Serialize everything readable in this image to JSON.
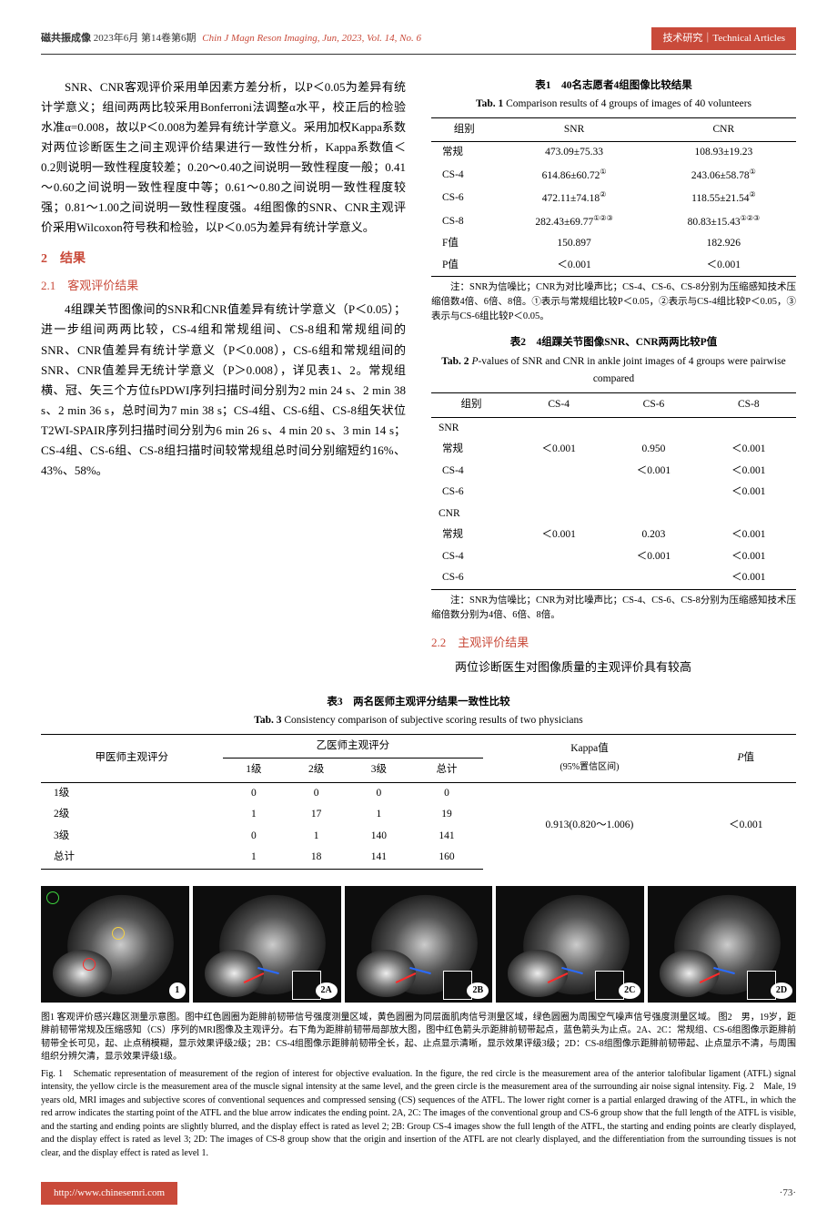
{
  "colors": {
    "accent": "#c94a3a",
    "text": "#000000",
    "background": "#ffffff",
    "mri_bg": "#0d0d0d",
    "circle_red": "#ff2a2a",
    "circle_yellow": "#f5d142",
    "circle_green": "#3fd63f",
    "arrow_red": "#ff2a2a",
    "arrow_blue": "#2a6bff"
  },
  "header": {
    "journal_cn": "磁共振成像",
    "issue_info": "2023年6月 第14卷第6期",
    "journal_en": "Chin J Magn Reson Imaging, Jun, 2023, Vol. 14, No. 6",
    "section_label": "技术研究｜Technical Articles"
  },
  "body": {
    "para1": "SNR、CNR客观评价采用单因素方差分析，以P＜0.05为差异有统计学意义；组间两两比较采用Bonferroni法调整α水平，校正后的检验水准α=0.008，故以P＜0.008为差异有统计学意义。采用加权Kappa系数对两位诊断医生之间主观评价结果进行一致性分析，Kappa系数值＜0.2则说明一致性程度较差；0.20～0.40之间说明一致性程度一般；0.41～0.60之间说明一致性程度中等；0.61～0.80之间说明一致性程度较强；0.81～1.00之间说明一致性程度强。4组图像的SNR、CNR主观评价采用Wilcoxon符号秩和检验，以P＜0.05为差异有统计学意义。",
    "section2_title": "2　结果",
    "section2_1_title": "2.1　客观评价结果",
    "para2": "4组踝关节图像间的SNR和CNR值差异有统计学意义（P＜0.05）；进一步组间两两比较，CS-4组和常规组间、CS-8组和常规组间的SNR、CNR值差异有统计学意义（P＜0.008），CS-6组和常规组间的SNR、CNR值差异无统计学意义（P＞0.008），详见表1、2。常规组横、冠、矢三个方位fsPDWI序列扫描时间分别为2 min 24 s、2 min 38 s、2 min 36 s，总时间为7 min 38 s；CS-4组、CS-6组、CS-8组矢状位T2WI-SPAIR序列扫描时间分别为6 min 26 s、4 min 20 s、3 min 14 s；CS-4组、CS-6组、CS-8组扫描时间较常规组总时间分别缩短约16%、43%、58%。",
    "section2_2_title": "2.2　主观评价结果",
    "para3": "两位诊断医生对图像质量的主观评价具有较高"
  },
  "table1": {
    "title_cn": "表1　40名志愿者4组图像比较结果",
    "title_en_prefix": "Tab. 1",
    "title_en": "Comparison results of 4 groups of images of 40 volunteers",
    "columns": [
      "组别",
      "SNR",
      "CNR"
    ],
    "rows": [
      {
        "cells": [
          "常规",
          "473.09±75.33",
          "108.93±19.23"
        ],
        "sup": [
          "",
          "",
          ""
        ]
      },
      {
        "cells": [
          "CS-4",
          "614.86±60.72",
          "243.06±58.78"
        ],
        "sup": [
          "",
          "①",
          "①"
        ]
      },
      {
        "cells": [
          "CS-6",
          "472.11±74.18",
          "118.55±21.54"
        ],
        "sup": [
          "",
          "②",
          "②"
        ]
      },
      {
        "cells": [
          "CS-8",
          "282.43±69.77",
          "80.83±15.43"
        ],
        "sup": [
          "",
          "①②③",
          "①②③"
        ]
      },
      {
        "cells": [
          "F值",
          "150.897",
          "182.926"
        ],
        "sup": [
          "",
          "",
          ""
        ]
      },
      {
        "cells": [
          "P值",
          "＜0.001",
          "＜0.001"
        ],
        "sup": [
          "",
          "",
          ""
        ]
      }
    ],
    "note": "注：SNR为信噪比；CNR为对比噪声比；CS-4、CS-6、CS-8分别为压缩感知技术压缩倍数4倍、6倍、8倍。①表示与常规组比较P＜0.05，②表示与CS-4组比较P＜0.05，③表示与CS-6组比较P＜0.05。"
  },
  "table2": {
    "title_cn": "表2　4组踝关节图像SNR、CNR两两比较P值",
    "title_en_prefix": "Tab. 2",
    "title_en": "P-values of SNR and CNR in ankle joint images of 4 groups were pairwise compared",
    "columns": [
      "组别",
      "CS-4",
      "CS-6",
      "CS-8"
    ],
    "groups": [
      {
        "label": "SNR",
        "rows": [
          [
            "常规",
            "＜0.001",
            "0.950",
            "＜0.001"
          ],
          [
            "CS-4",
            "",
            "＜0.001",
            "＜0.001"
          ],
          [
            "CS-6",
            "",
            "",
            "＜0.001"
          ]
        ]
      },
      {
        "label": "CNR",
        "rows": [
          [
            "常规",
            "＜0.001",
            "0.203",
            "＜0.001"
          ],
          [
            "CS-4",
            "",
            "＜0.001",
            "＜0.001"
          ],
          [
            "CS-6",
            "",
            "",
            "＜0.001"
          ]
        ]
      }
    ],
    "note": "注：SNR为信噪比；CNR为对比噪声比；CS-4、CS-6、CS-8分别为压缩感知技术压缩倍数分别为4倍、6倍、8倍。"
  },
  "table3": {
    "title_cn": "表3　两名医师主观评分结果一致性比较",
    "title_en_prefix": "Tab. 3",
    "title_en": "Consistency comparison of subjective scoring results of two physicians",
    "header_row1": [
      "甲医师主观评分",
      "乙医师主观评分",
      "Kappa值",
      "P值"
    ],
    "header_row2": [
      "1级",
      "2级",
      "3级",
      "总计"
    ],
    "kappa_sublabel": "(95%置信区间)",
    "rows": [
      [
        "1级",
        "0",
        "0",
        "0",
        "0"
      ],
      [
        "2级",
        "1",
        "17",
        "1",
        "19"
      ],
      [
        "3级",
        "0",
        "1",
        "140",
        "141"
      ],
      [
        "总计",
        "1",
        "18",
        "141",
        "160"
      ]
    ],
    "kappa_value": "0.913(0.820～1.006)",
    "p_value": "＜0.001"
  },
  "figures": {
    "badges": [
      "1",
      "2A",
      "2B",
      "2C",
      "2D"
    ],
    "caption_cn": "图1 客观评价感兴趣区测量示意图。图中红色圆圈为距腓前韧带信号强度测量区域，黄色圆圈为同层面肌肉信号测量区域，绿色圆圈为周围空气噪声信号强度测量区域。 图2　男，19岁，距腓前韧带常规及压缩感知（CS）序列的MRI图像及主观评分。右下角为距腓前韧带局部放大图，图中红色箭头示距腓前韧带起点，蓝色箭头为止点。2A、2C：常规组、CS-6组图像示距腓前韧带全长可见，起、止点稍模糊，显示效果评级2级；2B：CS-4组图像示距腓前韧带全长，起、止点显示清晰，显示效果评级3级；2D：CS-8组图像示距腓前韧带起、止点显示不清，与周围组织分辨欠清，显示效果评级1级。",
    "caption_en": "Fig. 1　Schematic representation of measurement of the region of interest for objective evaluation. In the figure, the red circle is the measurement area of the anterior talofibular ligament (ATFL) signal intensity, the yellow circle is the measurement area of the muscle signal intensity at the same level, and the green circle is the measurement area of the surrounding air noise signal intensity. Fig. 2　Male, 19 years old, MRI images and subjective scores of conventional sequences and compressed sensing (CS) sequences of the ATFL. The lower right corner is a partial enlarged drawing of the ATFL, in which the red arrow indicates the starting point of the ATFL and the blue arrow indicates the ending point. 2A, 2C: The images of the conventional group and CS-6 group show that the full length of the ATFL is visible, and the starting and ending points are slightly blurred, and the display effect is rated as level 2; 2B: Group CS-4 images show the full length of the ATFL, the starting and ending points are clearly displayed, and the display effect is rated as level 3; 2D: The images of CS-8 group show that the origin and insertion of the ATFL are not clearly displayed, and the differentiation from the surrounding tissues is not clear, and the display effect is rated as level 1."
  },
  "footer": {
    "url": "http://www.chinesemri.com",
    "page": "·73·"
  }
}
